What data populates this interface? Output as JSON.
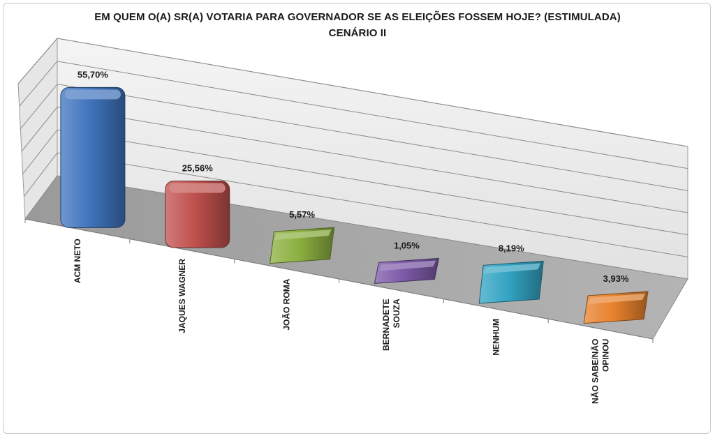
{
  "chart_data": {
    "type": "bar",
    "title": "EM QUEM O(A) SR(A) VOTARIA PARA GOVERNADOR SE AS ELEIÇÕES FOSSEM HOJE? (ESTIMULADA)",
    "subtitle": "CENÁRIO II",
    "categories": [
      [
        "ACM NETO"
      ],
      [
        "JAQUES WAGNER"
      ],
      [
        "JOÃO ROMA"
      ],
      [
        "BERNADETE",
        "SOUZA"
      ],
      [
        "NENHUM"
      ],
      [
        "NÃO SABE/NÃO",
        "OPINOU"
      ]
    ],
    "values": [
      55.7,
      25.56,
      5.57,
      1.05,
      8.19,
      3.93
    ],
    "value_labels": [
      "55,70%",
      "25,56%",
      "5,57%",
      "1,05%",
      "8,19%",
      "3,93%"
    ],
    "colors": [
      "#3f74bd",
      "#c0504d",
      "#8cb040",
      "#7c5aa8",
      "#33a4c3",
      "#e8822e"
    ],
    "ylim": [
      0,
      60
    ],
    "grid": true,
    "style": "3d-perspective"
  }
}
